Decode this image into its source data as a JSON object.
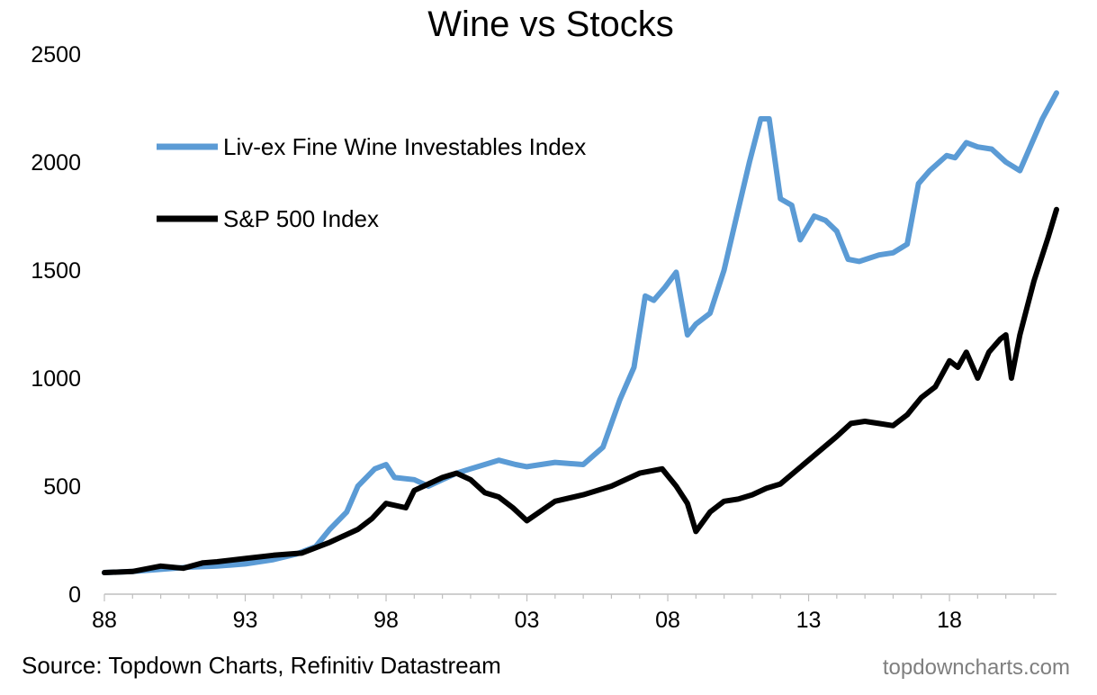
{
  "chart_data": {
    "type": "line",
    "title": "Wine vs Stocks",
    "xlabel": "",
    "ylabel": "",
    "xlim": [
      1988,
      2021.8
    ],
    "ylim": [
      0,
      2500
    ],
    "y_ticks": [
      0,
      500,
      1000,
      1500,
      2000,
      2500
    ],
    "x_ticks": [
      {
        "label": "88",
        "value": 1988
      },
      {
        "label": "93",
        "value": 1993
      },
      {
        "label": "98",
        "value": 1998
      },
      {
        "label": "03",
        "value": 2003
      },
      {
        "label": "08",
        "value": 2008
      },
      {
        "label": "13",
        "value": 2013
      },
      {
        "label": "18",
        "value": 2018
      }
    ],
    "legend_position": "top-left",
    "series": [
      {
        "name": "Liv-ex Fine Wine Investables Index",
        "color": "#5b9bd5",
        "x": [
          1988,
          1989,
          1990,
          1991,
          1992,
          1993,
          1994,
          1994.8,
          1995.5,
          1996,
          1996.6,
          1997,
          1997.6,
          1998,
          1998.3,
          1999,
          1999.5,
          2000,
          2000.5,
          2001,
          2001.5,
          2002,
          2002.6,
          2003,
          2004,
          2005,
          2005.7,
          2006.3,
          2006.8,
          2007.2,
          2007.5,
          2007.9,
          2008.3,
          2008.7,
          2009,
          2009.5,
          2010,
          2010.5,
          2010.9,
          2011.3,
          2011.6,
          2012,
          2012.4,
          2012.7,
          2013.2,
          2013.6,
          2014,
          2014.4,
          2014.8,
          2015.5,
          2016,
          2016.5,
          2016.9,
          2017.3,
          2017.9,
          2018.2,
          2018.6,
          2019,
          2019.5,
          2020,
          2020.5,
          2020.9,
          2021.3,
          2021.8
        ],
        "values": [
          100,
          105,
          115,
          125,
          130,
          140,
          160,
          185,
          220,
          300,
          380,
          500,
          580,
          600,
          540,
          530,
          500,
          530,
          560,
          580,
          600,
          620,
          600,
          590,
          610,
          600,
          680,
          900,
          1050,
          1380,
          1360,
          1420,
          1490,
          1200,
          1250,
          1300,
          1500,
          1780,
          2000,
          2200,
          2200,
          1830,
          1800,
          1640,
          1750,
          1730,
          1680,
          1550,
          1540,
          1570,
          1580,
          1620,
          1900,
          1960,
          2030,
          2020,
          2090,
          2070,
          2060,
          2000,
          1960,
          2080,
          2200,
          2320
        ]
      },
      {
        "name": "S&P 500 Index",
        "color": "#000000",
        "x": [
          1988,
          1989,
          1990,
          1990.8,
          1991.5,
          1992,
          1993,
          1994,
          1995,
          1996,
          1997,
          1997.5,
          1998,
          1998.7,
          1999,
          1999.5,
          2000,
          2000.5,
          2001,
          2001.5,
          2002,
          2002.5,
          2003,
          2004,
          2005,
          2006,
          2007,
          2007.8,
          2008.3,
          2008.7,
          2009,
          2009.5,
          2010,
          2010.5,
          2011,
          2011.5,
          2012,
          2013,
          2014,
          2014.5,
          2015,
          2015.5,
          2016,
          2016.5,
          2017,
          2017.5,
          2018,
          2018.3,
          2018.6,
          2019,
          2019.4,
          2019.8,
          2020,
          2020.2,
          2020.5,
          2020.8,
          2021,
          2021.5,
          2021.8
        ],
        "values": [
          100,
          105,
          130,
          120,
          145,
          150,
          165,
          180,
          190,
          240,
          300,
          350,
          420,
          400,
          480,
          510,
          540,
          560,
          530,
          470,
          450,
          400,
          340,
          430,
          460,
          500,
          560,
          580,
          500,
          420,
          290,
          380,
          430,
          440,
          460,
          490,
          510,
          620,
          730,
          790,
          800,
          790,
          780,
          830,
          910,
          960,
          1080,
          1050,
          1120,
          1000,
          1120,
          1180,
          1200,
          1000,
          1200,
          1350,
          1450,
          1650,
          1780
        ]
      }
    ]
  },
  "footer": {
    "source": "Source: Topdown Charts, Refinitiv Datastream",
    "watermark": "topdowncharts.com"
  }
}
